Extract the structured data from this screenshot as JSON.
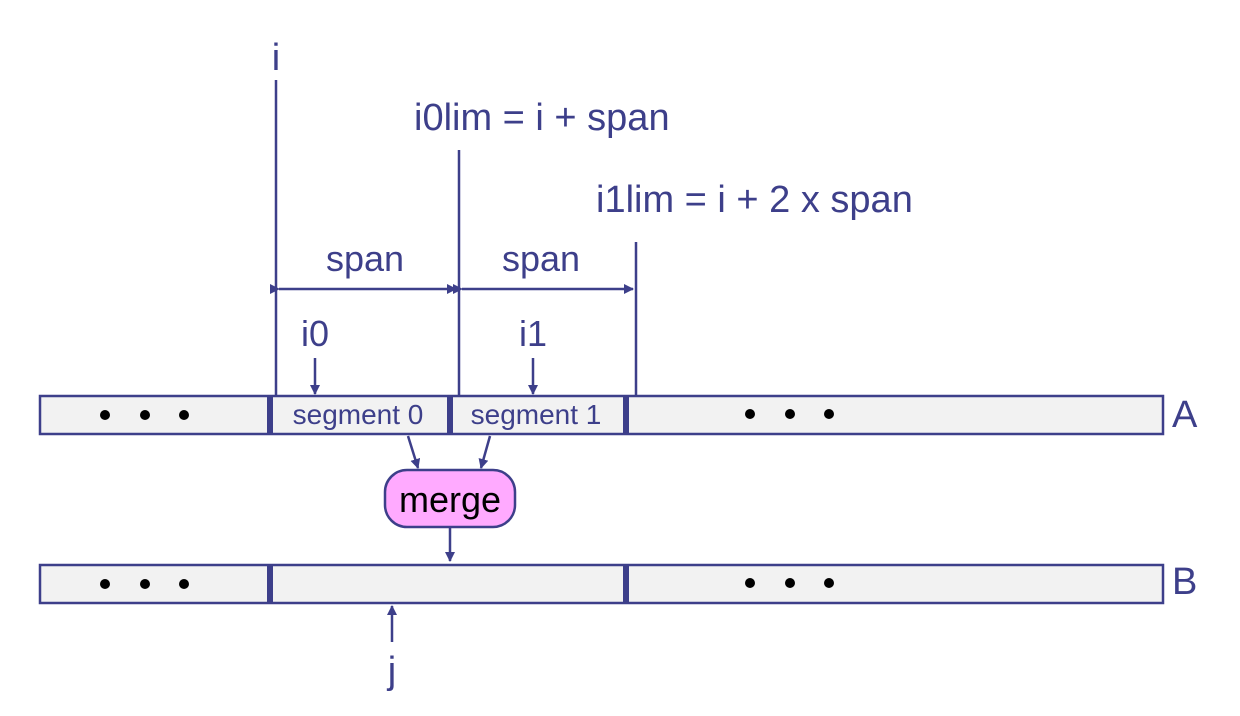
{
  "labels": {
    "i": "i",
    "i0lim": "i0lim = i + span",
    "i1lim": "i1lim = i + 2 x span",
    "span_left": "span",
    "span_right": "span",
    "i0": "i0",
    "i1": "i1",
    "segment0": "segment 0",
    "segment1": "segment 1",
    "array_a": "A",
    "array_b": "B",
    "merge": "merge",
    "j": "j"
  },
  "colors": {
    "ink": "#3d3f8a",
    "bar_fill": "#f2f2f2",
    "merge_fill": "#ffaaff"
  }
}
